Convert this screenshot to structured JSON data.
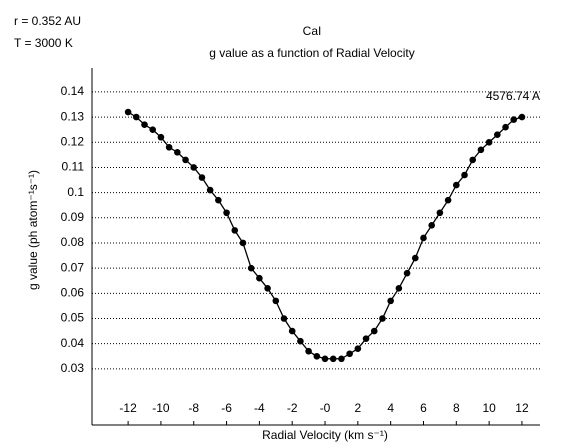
{
  "chart_data": {
    "type": "line",
    "title": "CaI",
    "subtitle": "g value as a function of Radial Velocity",
    "annotations": [
      "r = 0.352 AU",
      "T = 3000 K",
      "4576.74 A"
    ],
    "x_label": "Radial Velocity (km s⁻¹)",
    "y_label": "g value (ph atom⁻¹s⁻¹)",
    "x": [
      -12,
      -11.5,
      -11,
      -10.5,
      -10,
      -9.5,
      -9,
      -8.5,
      -8,
      -7.5,
      -7,
      -6.5,
      -6,
      -5.5,
      -5,
      -4.5,
      -4,
      -3.5,
      -3,
      -2.5,
      -2,
      -1.5,
      -1,
      -0.5,
      0,
      0.5,
      1,
      1.5,
      2,
      2.5,
      3,
      3.5,
      4,
      4.5,
      5,
      5.5,
      6,
      6.5,
      7,
      7.5,
      8,
      8.5,
      9,
      9.5,
      10,
      10.5,
      11,
      11.5,
      12
    ],
    "series": [
      {
        "name": "4576.74 A",
        "color": "#000000",
        "values": [
          0.132,
          0.13,
          0.127,
          0.125,
          0.122,
          0.118,
          0.116,
          0.113,
          0.11,
          0.106,
          0.101,
          0.097,
          0.092,
          0.085,
          0.08,
          0.07,
          0.066,
          0.062,
          0.057,
          0.05,
          0.045,
          0.041,
          0.037,
          0.035,
          0.034,
          0.034,
          0.034,
          0.036,
          0.038,
          0.042,
          0.045,
          0.05,
          0.057,
          0.062,
          0.068,
          0.074,
          0.082,
          0.087,
          0.092,
          0.097,
          0.103,
          0.107,
          0.113,
          0.117,
          0.12,
          0.123,
          0.126,
          0.129,
          0.13
        ]
      }
    ],
    "xlim": [
      -14.2,
      13.1
    ],
    "ylim": [
      0.0077,
      0.1495
    ],
    "xticks": [
      -12,
      -10,
      -8,
      -6,
      -4,
      -2,
      {
        "value": 0,
        "label": "-0"
      },
      2,
      4,
      6,
      8,
      10,
      12
    ],
    "yticks": [
      0.03,
      0.04,
      0.05,
      0.06,
      0.07,
      0.08,
      0.09,
      0.1,
      0.11,
      0.12,
      0.13,
      0.14
    ],
    "grid": true
  }
}
